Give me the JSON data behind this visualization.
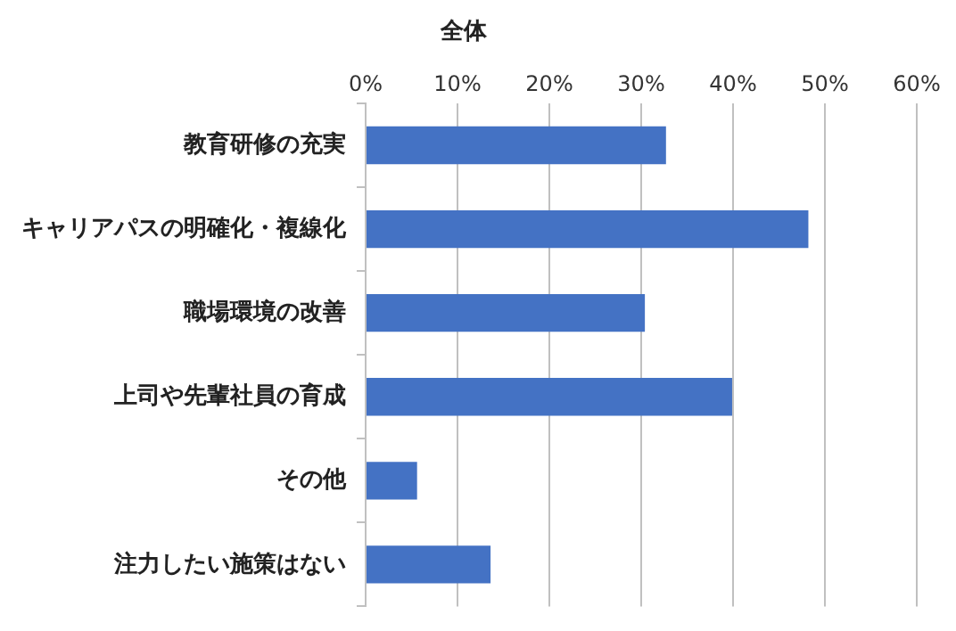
{
  "chart_data": {
    "type": "bar",
    "orientation": "horizontal",
    "title": "全体",
    "categories": [
      "教育研修の充実",
      "キャリアパスの明確化・複線化",
      "職場環境の改善",
      "上司や先輩社員の育成",
      "その他",
      "注力したい施策はない"
    ],
    "values": [
      32.7,
      48.2,
      30.4,
      39.9,
      5.6,
      13.6
    ],
    "color": "#4472c4",
    "xlim": [
      0,
      60
    ],
    "xticks": [
      {
        "value": 0,
        "label": "0%"
      },
      {
        "value": 10,
        "label": "10%"
      },
      {
        "value": 20,
        "label": "20%"
      },
      {
        "value": 30,
        "label": "30%"
      },
      {
        "value": 40,
        "label": "40%"
      },
      {
        "value": 50,
        "label": "50%"
      },
      {
        "value": 60,
        "label": "60%"
      }
    ],
    "grid": "x",
    "legend": false
  }
}
